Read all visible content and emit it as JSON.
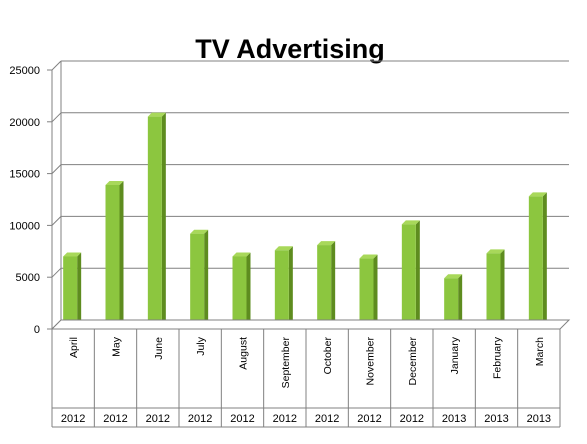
{
  "chart_data": {
    "type": "bar",
    "title": "TV Advertising",
    "categories": [
      "April",
      "May",
      "June",
      "July",
      "August",
      "September",
      "October",
      "November",
      "December",
      "January",
      "February",
      "March"
    ],
    "category_groups": [
      "2012",
      "2012",
      "2012",
      "2012",
      "2012",
      "2012",
      "2012",
      "2012",
      "2012",
      "2013",
      "2013",
      "2013"
    ],
    "values": [
      7000,
      13900,
      20500,
      9200,
      7000,
      7600,
      8100,
      6800,
      10100,
      4900,
      7300,
      12800
    ],
    "ylim": [
      0,
      25000
    ],
    "yticks": [
      0,
      5000,
      10000,
      15000,
      20000,
      25000
    ],
    "grid": true,
    "legend": "none",
    "bar_color": "#8CC63F",
    "bar_side_color": "#5E8C1F"
  }
}
